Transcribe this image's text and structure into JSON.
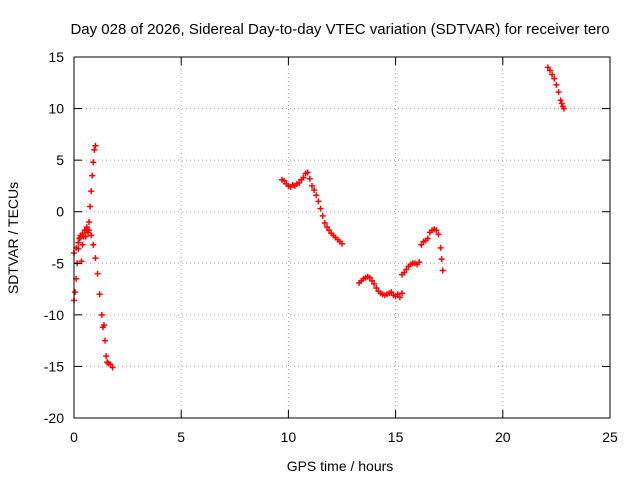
{
  "chart_data": {
    "type": "scatter",
    "title": "Day 028 of 2026, Sidereal Day-to-day VTEC variation (SDTVAR) for receiver tero",
    "xlabel": "GPS time / hours",
    "ylabel": "SDTVAR / TECUs",
    "xlim": [
      0,
      25
    ],
    "ylim": [
      -20,
      15
    ],
    "xticks": [
      0,
      5,
      10,
      15,
      20,
      25
    ],
    "yticks": [
      -20,
      -15,
      -10,
      -5,
      0,
      5,
      10,
      15
    ],
    "grid": true,
    "marker": "+",
    "marker_color": "#ff0000",
    "segments": [
      {
        "points": [
          [
            0.0,
            -8.6
          ],
          [
            0.05,
            -7.8
          ],
          [
            0.1,
            -6.5
          ],
          [
            0.15,
            -5.0
          ],
          [
            0.2,
            -3.6
          ],
          [
            0.25,
            -2.6
          ],
          [
            0.3,
            -2.3
          ],
          [
            0.35,
            -4.8
          ],
          [
            0.4,
            -3.2
          ],
          [
            0.45,
            -2.4
          ],
          [
            0.5,
            -1.8
          ],
          [
            0.55,
            -2.4
          ],
          [
            0.6,
            -1.5
          ],
          [
            0.65,
            -2.0
          ],
          [
            0.7,
            -1.0
          ],
          [
            0.75,
            0.5
          ],
          [
            0.8,
            2.0
          ],
          [
            0.85,
            3.5
          ],
          [
            0.9,
            4.8
          ],
          [
            0.95,
            6.0
          ],
          [
            1.0,
            6.4
          ]
        ]
      },
      {
        "points": [
          [
            0.0,
            -4.0
          ],
          [
            0.1,
            -3.5
          ],
          [
            0.2,
            -3.0
          ],
          [
            0.3,
            -2.5
          ],
          [
            0.4,
            -2.1
          ],
          [
            0.5,
            -1.8
          ],
          [
            0.6,
            -1.7
          ],
          [
            0.7,
            -1.8
          ],
          [
            0.8,
            -2.3
          ],
          [
            0.9,
            -3.2
          ],
          [
            1.0,
            -4.5
          ],
          [
            1.1,
            -6.0
          ],
          [
            1.2,
            -8.0
          ],
          [
            1.3,
            -10.0
          ],
          [
            1.35,
            -11.2
          ],
          [
            1.4,
            -11.0
          ],
          [
            1.45,
            -12.5
          ],
          [
            1.5,
            -14.0
          ],
          [
            1.55,
            -14.6
          ],
          [
            1.6,
            -14.7
          ],
          [
            1.7,
            -14.8
          ],
          [
            1.8,
            -15.1
          ]
        ]
      },
      {
        "points": [
          [
            9.7,
            3.1
          ],
          [
            9.8,
            3.0
          ],
          [
            9.9,
            2.7
          ],
          [
            10.0,
            2.5
          ],
          [
            10.1,
            2.4
          ],
          [
            10.2,
            2.6
          ],
          [
            10.3,
            2.5
          ],
          [
            10.4,
            2.7
          ],
          [
            10.5,
            2.8
          ],
          [
            10.6,
            3.1
          ],
          [
            10.7,
            3.3
          ],
          [
            10.8,
            3.7
          ],
          [
            10.9,
            3.8
          ],
          [
            11.0,
            3.2
          ],
          [
            11.1,
            2.5
          ],
          [
            11.2,
            2.1
          ],
          [
            11.3,
            1.6
          ],
          [
            11.4,
            1.0
          ],
          [
            11.5,
            0.3
          ],
          [
            11.6,
            -0.4
          ],
          [
            11.7,
            -1.1
          ],
          [
            11.8,
            -1.5
          ],
          [
            11.9,
            -1.8
          ],
          [
            12.0,
            -2.1
          ],
          [
            12.1,
            -2.3
          ],
          [
            12.2,
            -2.5
          ],
          [
            12.3,
            -2.7
          ],
          [
            12.4,
            -2.9
          ],
          [
            12.5,
            -3.1
          ]
        ]
      },
      {
        "points": [
          [
            13.3,
            -6.9
          ],
          [
            13.4,
            -6.7
          ],
          [
            13.5,
            -6.5
          ],
          [
            13.6,
            -6.4
          ],
          [
            13.7,
            -6.3
          ],
          [
            13.8,
            -6.4
          ],
          [
            13.9,
            -6.7
          ],
          [
            14.0,
            -7.0
          ],
          [
            14.1,
            -7.4
          ],
          [
            14.2,
            -7.7
          ],
          [
            14.3,
            -7.9
          ],
          [
            14.4,
            -8.0
          ],
          [
            14.5,
            -8.1
          ],
          [
            14.6,
            -8.0
          ],
          [
            14.7,
            -7.9
          ],
          [
            14.8,
            -7.8
          ],
          [
            14.9,
            -8.1
          ],
          [
            15.0,
            -8.2
          ],
          [
            15.1,
            -8.0
          ],
          [
            15.2,
            -8.3
          ],
          [
            15.3,
            -7.9
          ]
        ]
      },
      {
        "points": [
          [
            15.3,
            -6.1
          ],
          [
            15.4,
            -5.9
          ],
          [
            15.5,
            -5.6
          ],
          [
            15.6,
            -5.3
          ],
          [
            15.7,
            -5.1
          ],
          [
            15.8,
            -5.0
          ],
          [
            15.9,
            -5.0
          ],
          [
            16.0,
            -5.1
          ],
          [
            16.1,
            -4.9
          ]
        ]
      },
      {
        "points": [
          [
            16.2,
            -3.2
          ],
          [
            16.3,
            -2.9
          ],
          [
            16.4,
            -2.8
          ],
          [
            16.5,
            -2.6
          ],
          [
            16.6,
            -2.0
          ],
          [
            16.7,
            -1.8
          ],
          [
            16.8,
            -1.7
          ],
          [
            16.9,
            -1.8
          ],
          [
            17.0,
            -2.2
          ],
          [
            17.1,
            -3.5
          ],
          [
            17.15,
            -4.6
          ],
          [
            17.2,
            -5.7
          ]
        ]
      },
      {
        "points": [
          [
            22.1,
            14.0
          ],
          [
            22.2,
            13.7
          ],
          [
            22.3,
            13.3
          ],
          [
            22.4,
            12.9
          ],
          [
            22.5,
            12.3
          ],
          [
            22.6,
            11.6
          ],
          [
            22.7,
            10.8
          ],
          [
            22.75,
            10.5
          ],
          [
            22.8,
            10.2
          ],
          [
            22.85,
            10.0
          ]
        ]
      }
    ]
  }
}
